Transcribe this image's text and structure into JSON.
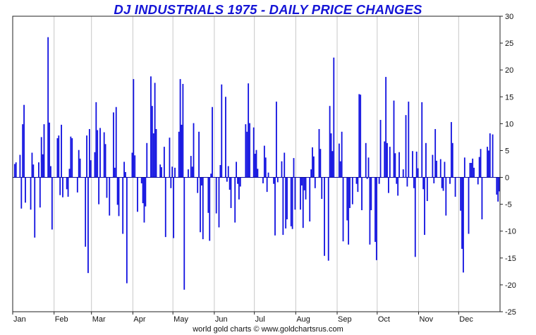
{
  "chart_data": {
    "type": "bar",
    "title": "DJ INDUSTRIALS 1975 - DAILY PRICE CHANGES",
    "xlabel": "",
    "ylabel": "",
    "ylim": [
      -25,
      30
    ],
    "y_ticks": [
      30,
      25,
      20,
      15,
      10,
      5,
      0,
      -5,
      -10,
      -15,
      -20,
      -25
    ],
    "y_axis_side": "right",
    "grid": "vertical at month boundaries",
    "x_range": [
      "1975-01-01",
      "1975-12-31"
    ],
    "month_labels": [
      {
        "label": "Jan",
        "start": "1975-01-01"
      },
      {
        "label": "Feb",
        "start": "1975-02-01"
      },
      {
        "label": "Mar",
        "start": "1975-03-01"
      },
      {
        "label": "Apr",
        "start": "1975-04-01"
      },
      {
        "label": "May",
        "start": "1975-05-01"
      },
      {
        "label": "Jun",
        "start": "1975-06-01"
      },
      {
        "label": "Jul",
        "start": "1975-07-01"
      },
      {
        "label": "Aug",
        "start": "1975-08-01"
      },
      {
        "label": "Sep",
        "start": "1975-09-01"
      },
      {
        "label": "Oct",
        "start": "1975-10-01"
      },
      {
        "label": "Nov",
        "start": "1975-11-01"
      },
      {
        "label": "Dec",
        "start": "1975-12-01"
      }
    ],
    "bar_color": "#1010e0",
    "values": [
      2.5,
      2.8,
      4.2,
      -5.8,
      9.9,
      13.5,
      -4.7,
      -6.0,
      4.6,
      2.4,
      -11.2,
      2.8,
      -5.6,
      7.5,
      4.3,
      9.9,
      26.1,
      10.2,
      2.1,
      -9.7,
      7.3,
      7.8,
      -3.3,
      9.8,
      -3.7,
      -2.2,
      -3.6,
      1.6,
      7.6,
      7.3,
      -2.8,
      5.1,
      3.5,
      -12.9,
      7.8,
      -17.8,
      9.0,
      3.2,
      4.7,
      14.0,
      8.8,
      -5.0,
      9.2,
      8.4,
      6.2,
      -3.8,
      -7.1,
      12.1,
      1.8,
      13.1,
      -5.1,
      -7.2,
      -10.5,
      2.9,
      1.0,
      -19.7,
      4.6,
      18.3,
      4.1,
      -6.4,
      -1.1,
      -4.8,
      -8.4,
      -5.4,
      6.4,
      18.8,
      13.3,
      8.2,
      17.6,
      9.0,
      2.4,
      1.9,
      5.7,
      -11.1,
      7.4,
      -2.0,
      2.0,
      -11.3,
      1.8,
      8.5,
      18.3,
      9.8,
      17.4,
      -20.9,
      1.5,
      4.0,
      2.0,
      10.1,
      -2.9,
      8.5,
      -10.2,
      -1.5,
      -11.5,
      -6.6,
      -11.8,
      0.7,
      13.1,
      -6.7,
      -9.3,
      2.3,
      17.3,
      15.0,
      -0.8,
      2.1,
      -2.3,
      -5.7,
      -8.4,
      2.9,
      -1.2,
      -4.1,
      -1.7,
      9.9,
      8.5,
      17.5,
      10.1,
      9.3,
      4.4,
      5.1,
      1.6,
      -1.1,
      5.9,
      3.7,
      -2.7,
      0.9,
      -1.2,
      -10.8,
      14.1,
      -0.9,
      3.0,
      -10.7,
      4.6,
      -9.5,
      -7.8,
      -9.1,
      -9.6,
      3.6,
      -6.0,
      -6.0,
      -1.5,
      -9.4,
      -2.4,
      -4.1,
      -8.2,
      1.5,
      5.6,
      3.9,
      -2.0,
      9.0,
      5.3,
      -4.0,
      -14.6,
      -15.5,
      13.3,
      8.2,
      4.9,
      22.3,
      6.3,
      3.0,
      8.5,
      -11.9,
      -8.0,
      -12.5,
      -5.7,
      -5.0,
      -1.2,
      -2.7,
      15.5,
      15.4,
      -6.1,
      6.4,
      -0.3,
      3.7,
      -12.5,
      -6.1,
      -12.0,
      -15.4,
      -1.2,
      10.7,
      6.7,
      18.7,
      6.4,
      -2.9,
      5.7,
      14.3,
      4.5,
      -1.2,
      -3.4,
      4.7,
      1.5,
      11.6,
      -1.7,
      14.1,
      4.9,
      -2.0,
      -14.8,
      4.8,
      1.7,
      14.0,
      -2.2,
      -10.7,
      6.4,
      -4.4,
      4.2,
      -1.1,
      9.0,
      3.1,
      3.4,
      -2.0,
      -2.5,
      2.9,
      -7.1,
      -1.2,
      10.3,
      6.4,
      -3.6,
      -6.2,
      -13.3,
      -17.7,
      3.7,
      -10.5,
      2.7,
      2.7,
      3.5,
      1.8,
      -1.3,
      3.8,
      5.3,
      -7.8,
      5.7,
      5.0,
      8.2,
      8.0,
      -3.2,
      -4.5,
      -2.6
    ]
  },
  "footer": {
    "text": "world gold charts © www.goldchartsrus.com"
  }
}
